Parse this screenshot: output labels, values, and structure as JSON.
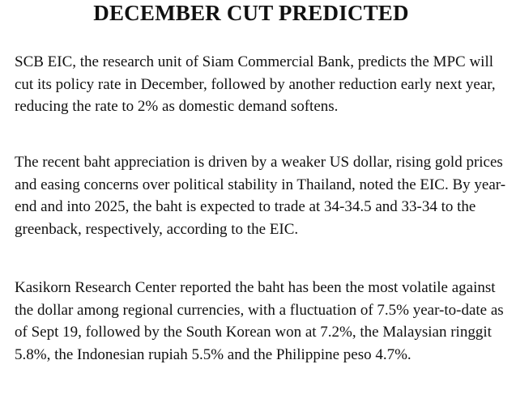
{
  "article": {
    "headline": "DECEMBER CUT PREDICTED",
    "paragraphs": [
      "SCB EIC, the research unit of Siam Commercial Bank, predicts the MPC will cut its policy rate in December, followed by another reduction early next year, reducing the rate to 2% as domestic demand softens.",
      "The recent baht appreciation is driven by a weaker US dollar, rising gold prices and easing concerns over political stability in Thailand, noted the EIC. By year-end and into 2025, the baht is expected to trade at 34-34.5 and 33-34 to the greenback, respectively, according to the EIC.",
      "Kasikorn Research Center reported the baht has been the most volatile against the dollar among regional currencies, with a fluctuation of 7.5% year-to-date as of Sept 19, followed by the South Korean won at 7.2%, the Malaysian ringgit 5.8%, the Indonesian rupiah 5.5% and the Philippine peso 4.7%."
    ]
  }
}
